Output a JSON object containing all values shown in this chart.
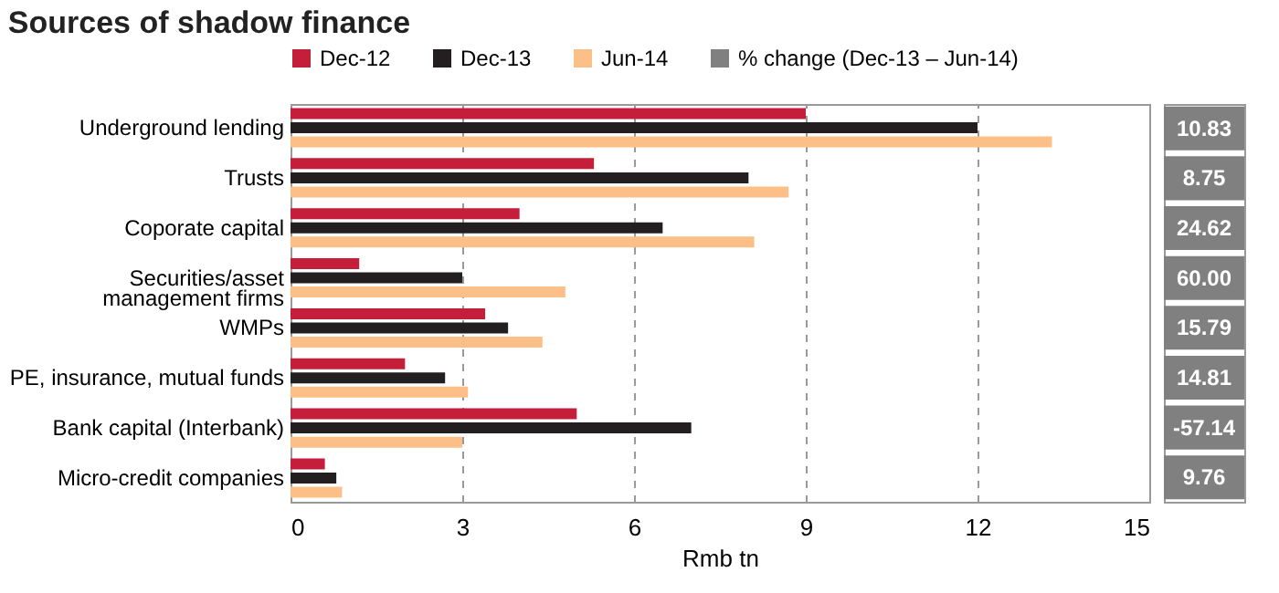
{
  "chart_data": [
    {
      "type": "bar",
      "orientation": "horizontal",
      "title": "Sources of shadow finance",
      "xlabel": "Rmb tn",
      "categories": [
        "Underground lending",
        "Trusts",
        "Coporate capital",
        "Securities/asset management firms",
        "WMPs",
        "PE, insurance, mutual funds",
        "Bank capital (Interbank)",
        "Micro-credit companies"
      ],
      "series": [
        {
          "name": "Dec-12",
          "color": "#c41e3a",
          "values": [
            9.0,
            5.3,
            4.0,
            1.2,
            3.4,
            2.0,
            5.0,
            0.6
          ]
        },
        {
          "name": "Dec-13",
          "color": "#231f20",
          "values": [
            12.0,
            8.0,
            6.5,
            3.0,
            3.8,
            2.7,
            7.0,
            0.8
          ]
        },
        {
          "name": "Jun-14",
          "color": "#fbbf87",
          "values": [
            13.3,
            8.7,
            8.1,
            4.8,
            4.4,
            3.1,
            3.0,
            0.9
          ]
        }
      ],
      "xlim": [
        0,
        15
      ],
      "xticks": [
        0,
        3,
        6,
        9,
        12,
        15
      ],
      "grid": "x",
      "legend": "top"
    },
    {
      "type": "other",
      "series": [
        {
          "name": "% change (Dec-13 – Jun-14)",
          "color": "#808080",
          "values": [
            10.83,
            8.75,
            24.62,
            60.0,
            15.79,
            14.81,
            -57.14,
            9.76
          ],
          "value_labels": [
            "10.83",
            "8.75",
            "24.62",
            "60.00",
            "15.79",
            "14.81",
            "-57.14",
            "9.76"
          ]
        }
      ],
      "data_labels": true
    }
  ]
}
